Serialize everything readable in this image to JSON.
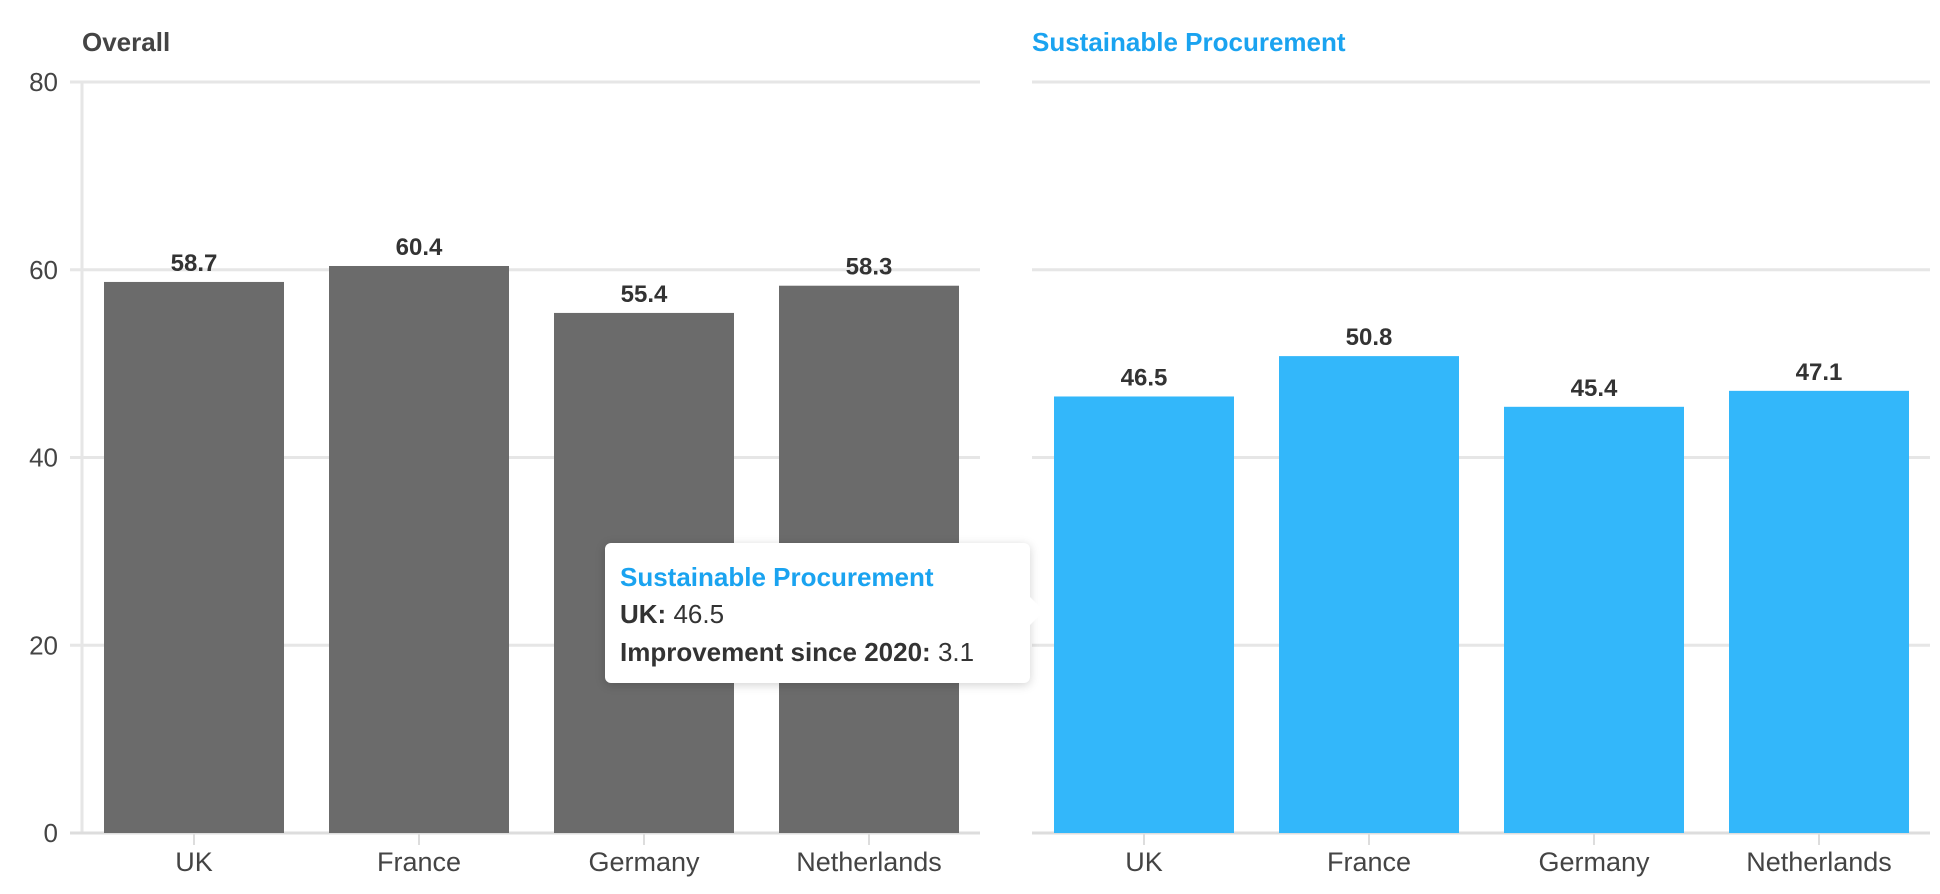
{
  "colors": {
    "overall": "#6b6b6b",
    "sustainable": "#33b7fa",
    "accent_title": "#1aa3f0",
    "overall_title": "#444444",
    "grid": "#e6e6e6"
  },
  "chart_data": [
    {
      "type": "bar",
      "title": "Overall",
      "categories": [
        "UK",
        "France",
        "Germany",
        "Netherlands"
      ],
      "values": [
        58.7,
        60.4,
        55.4,
        58.3
      ],
      "data_labels": [
        "58.7",
        "60.4",
        "55.4",
        "58.3"
      ],
      "ylim": [
        0,
        80
      ],
      "yticks": [
        0,
        20,
        40,
        60,
        80
      ],
      "grid": true
    },
    {
      "type": "bar",
      "title": "Sustainable Procurement",
      "categories": [
        "UK",
        "France",
        "Germany",
        "Netherlands"
      ],
      "values": [
        46.5,
        50.8,
        45.4,
        47.1
      ],
      "data_labels": [
        "46.5",
        "50.8",
        "45.4",
        "47.1"
      ],
      "ylim": [
        0,
        80
      ],
      "yticks": [
        0,
        20,
        40,
        60,
        80
      ],
      "grid": true
    }
  ],
  "tooltip": {
    "title": "Sustainable Procurement",
    "category_label": "UK:",
    "category_value": "46.5",
    "improvement_label": "Improvement since 2020:",
    "improvement_value": "3.1"
  }
}
